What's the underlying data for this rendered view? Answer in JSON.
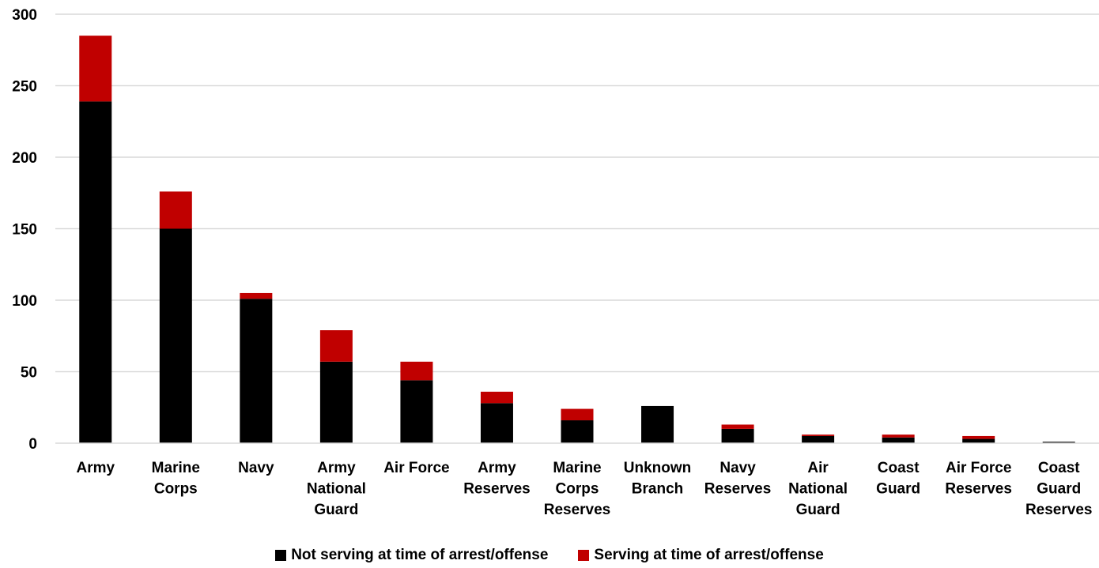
{
  "chart_data": {
    "type": "bar",
    "stacked": true,
    "categories": [
      [
        "Army"
      ],
      [
        "Marine",
        "Corps"
      ],
      [
        "Navy"
      ],
      [
        "Army",
        "National",
        "Guard"
      ],
      [
        "Air Force"
      ],
      [
        "Army",
        "Reserves"
      ],
      [
        "Marine",
        "Corps",
        "Reserves"
      ],
      [
        "Unknown",
        "Branch"
      ],
      [
        "Navy",
        "Reserves"
      ],
      [
        "Air",
        "National",
        "Guard"
      ],
      [
        "Coast",
        "Guard"
      ],
      [
        "Air Force",
        "Reserves"
      ],
      [
        "Coast",
        "Guard",
        "Reserves"
      ]
    ],
    "series": [
      {
        "name": "Not serving at time of arrest/offense",
        "color": "#000000",
        "values": [
          239,
          150,
          101,
          57,
          44,
          28,
          16,
          26,
          10,
          5,
          4,
          3,
          1
        ]
      },
      {
        "name": "Serving at time of arrest/offense",
        "color": "#c00000",
        "values": [
          46,
          26,
          4,
          22,
          13,
          8,
          8,
          0,
          3,
          1,
          2,
          2,
          0
        ]
      }
    ],
    "ylim": [
      0,
      300
    ],
    "yticks": [
      0,
      50,
      100,
      150,
      200,
      250,
      300
    ],
    "grid": true,
    "legend_position": "bottom"
  }
}
